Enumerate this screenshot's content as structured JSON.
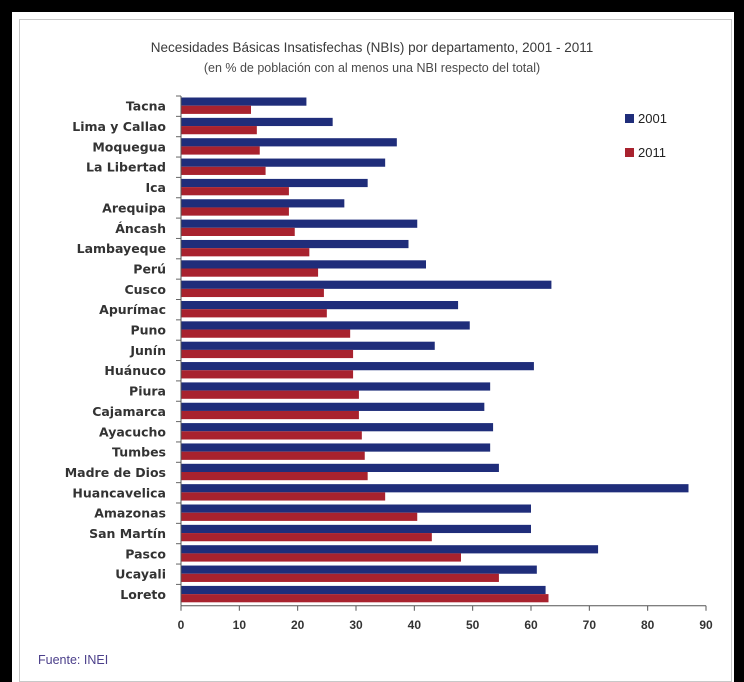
{
  "chart_data": {
    "type": "bar",
    "orientation": "horizontal",
    "title": "Necesidades Básicas Insatisfechas (NBIs) por departamento, 2001 - 2011",
    "subtitle": "(en % de población con al menos una NBI respecto del total)",
    "source": "Fuente: INEI",
    "categories": [
      "Tacna",
      "Lima y Callao",
      "Moquegua",
      "La Libertad",
      "Ica",
      "Arequipa",
      "Áncash",
      "Lambayeque",
      "Perú",
      "Cusco",
      "Apurímac",
      "Puno",
      "Junín",
      "Huánuco",
      "Piura",
      "Cajamarca",
      "Ayacucho",
      "Tumbes",
      "Madre de Dios",
      "Huancavelica",
      "Amazonas",
      "San Martín",
      "Pasco",
      "Ucayali",
      "Loreto"
    ],
    "series": [
      {
        "name": "2001",
        "color": "#1f2d7a",
        "values": [
          21.5,
          26,
          37,
          35,
          32,
          28,
          40.5,
          39,
          42,
          63.5,
          47.5,
          49.5,
          43.5,
          60.5,
          53,
          52,
          53.5,
          53,
          54.5,
          87,
          60,
          60,
          71.5,
          61,
          62.5
        ]
      },
      {
        "name": "2011",
        "color": "#a8222e",
        "values": [
          12,
          13,
          13.5,
          14.5,
          18.5,
          18.5,
          19.5,
          22,
          23.5,
          24.5,
          25,
          29,
          29.5,
          29.5,
          30.5,
          30.5,
          31,
          31.5,
          32,
          35,
          40.5,
          43,
          48,
          54.5,
          63
        ]
      }
    ],
    "xlim": [
      0,
      90
    ],
    "xticks": [
      "0",
      "10",
      "20",
      "30",
      "40",
      "50",
      "60",
      "70",
      "80",
      "90"
    ],
    "legend_position": "top-right",
    "grid": false
  }
}
